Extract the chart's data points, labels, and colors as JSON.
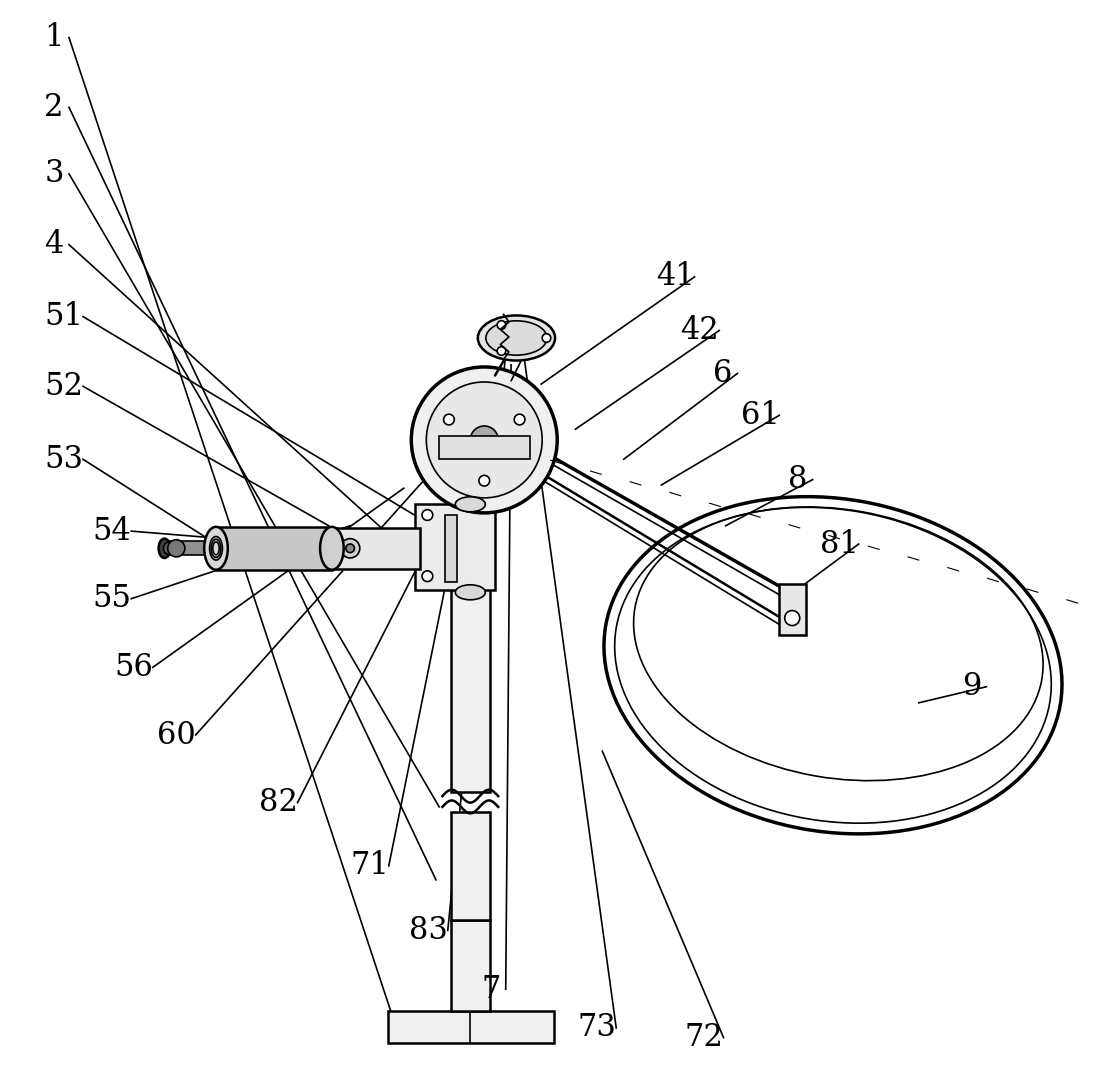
{
  "bg_color": "#ffffff",
  "line_color": "#000000",
  "fig_width": 11.08,
  "fig_height": 10.73,
  "font_size": 22
}
